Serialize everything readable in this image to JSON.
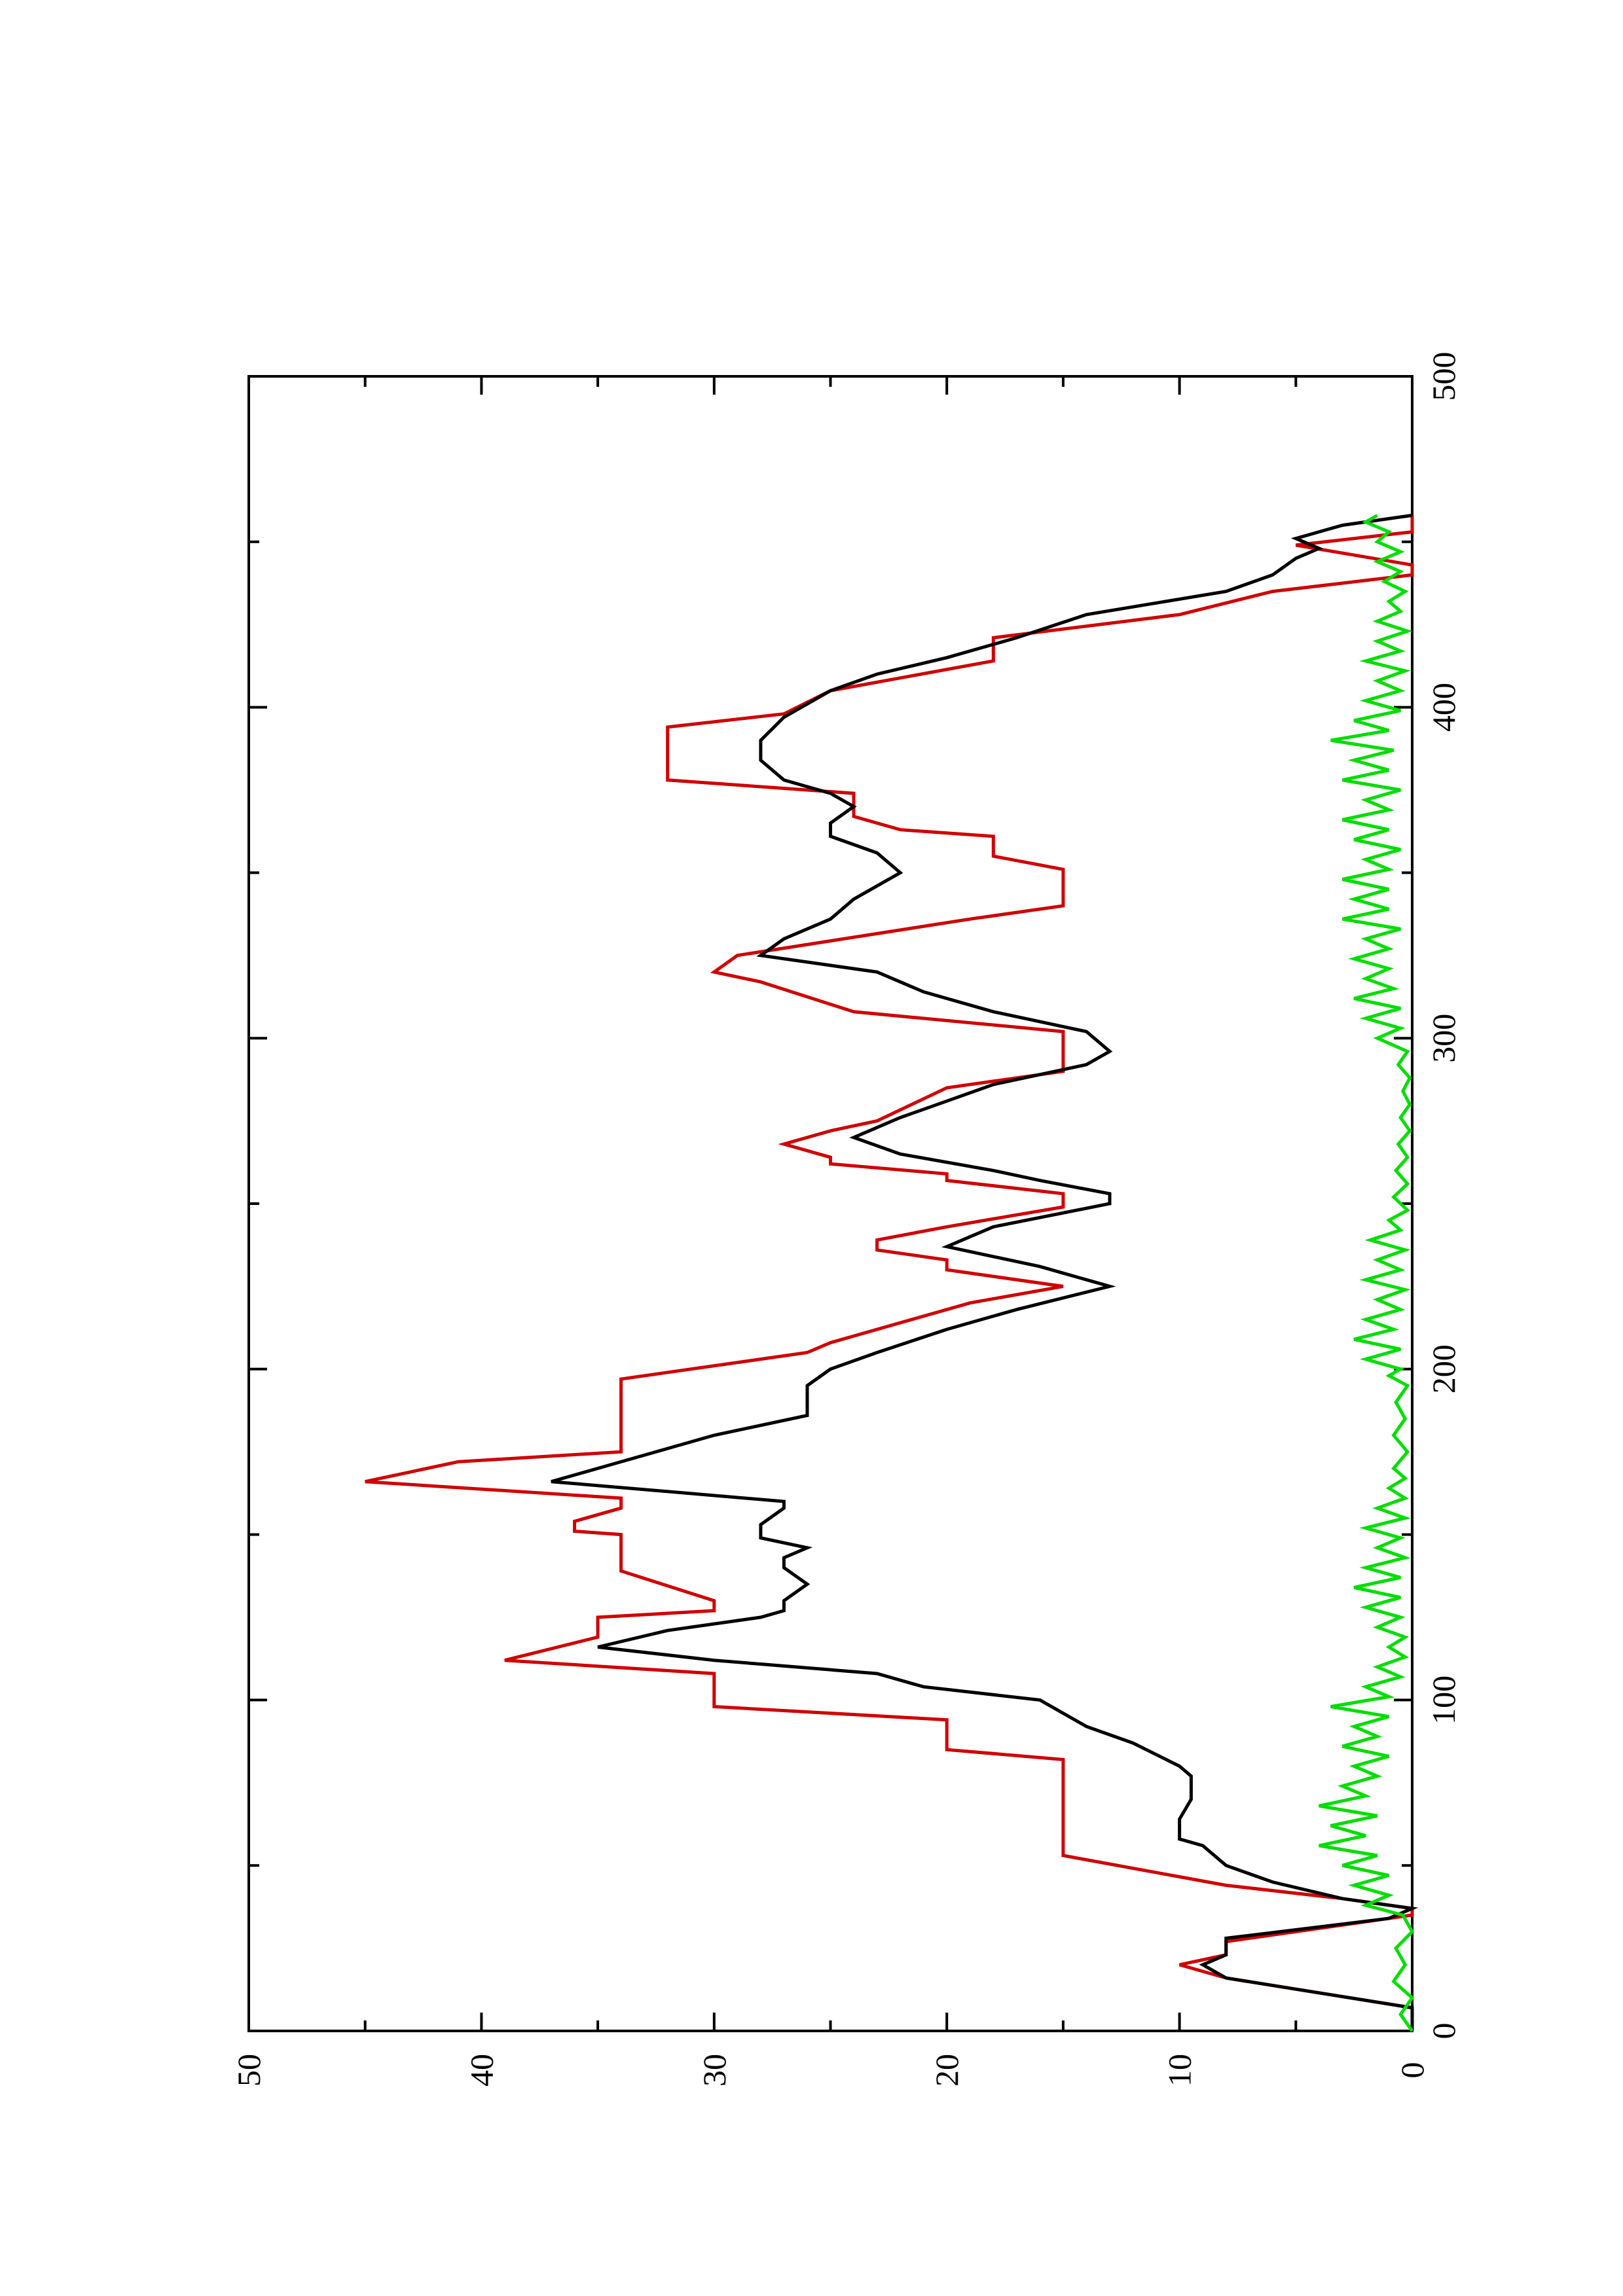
{
  "chart_data": {
    "type": "line",
    "orientation": "rotated-90-ccw",
    "title": "",
    "xlabel": "",
    "ylabel": "",
    "xlim": [
      0,
      500
    ],
    "ylim": [
      0,
      50
    ],
    "grid": false,
    "legend": "none",
    "x_ticks": [
      0,
      100,
      200,
      300,
      400,
      500
    ],
    "x_tick_labels": [
      "0",
      "100",
      "200",
      "300",
      "400",
      "500"
    ],
    "x_minor_ticks": [
      50,
      150,
      250,
      350,
      450
    ],
    "y_ticks": [
      0,
      10,
      20,
      30,
      40,
      50
    ],
    "y_tick_labels": [
      "0",
      "10",
      "20",
      "30",
      "40",
      "50"
    ],
    "y_minor_ticks": [
      5,
      15,
      25,
      35,
      45
    ],
    "series": [
      {
        "color": "#d00000",
        "points": [
          [
            0,
            0
          ],
          [
            7,
            0
          ],
          [
            16,
            8
          ],
          [
            20,
            10
          ],
          [
            23,
            8
          ],
          [
            27,
            8
          ],
          [
            35,
            0
          ],
          [
            37,
            0
          ],
          [
            40,
            3
          ],
          [
            44,
            8
          ],
          [
            53,
            15
          ],
          [
            56,
            15
          ],
          [
            82,
            15
          ],
          [
            85,
            20
          ],
          [
            94,
            20
          ],
          [
            98,
            30
          ],
          [
            108,
            30
          ],
          [
            112,
            39
          ],
          [
            119,
            35
          ],
          [
            125,
            35
          ],
          [
            127,
            30
          ],
          [
            130,
            30
          ],
          [
            139,
            34
          ],
          [
            150,
            34
          ],
          [
            151,
            36
          ],
          [
            154,
            36
          ],
          [
            158,
            34
          ],
          [
            161,
            34
          ],
          [
            166,
            45
          ],
          [
            172,
            41
          ],
          [
            175,
            34
          ],
          [
            197,
            34
          ],
          [
            205,
            26
          ],
          [
            208,
            25
          ],
          [
            218,
            20
          ],
          [
            220,
            19
          ],
          [
            225,
            15
          ],
          [
            230,
            20
          ],
          [
            233,
            20
          ],
          [
            236,
            23
          ],
          [
            239,
            23
          ],
          [
            243,
            20
          ],
          [
            249,
            15
          ],
          [
            253,
            15
          ],
          [
            257,
            20
          ],
          [
            259,
            20
          ],
          [
            262,
            25
          ],
          [
            264,
            25
          ],
          [
            268,
            27
          ],
          [
            272,
            25
          ],
          [
            275,
            23
          ],
          [
            285,
            20
          ],
          [
            290,
            15
          ],
          [
            302,
            15
          ],
          [
            308,
            24
          ],
          [
            317,
            28
          ],
          [
            320,
            30
          ],
          [
            325,
            29
          ],
          [
            336,
            19
          ],
          [
            340,
            15
          ],
          [
            351,
            15
          ],
          [
            355,
            18
          ],
          [
            361,
            18
          ],
          [
            363,
            22
          ],
          [
            367,
            24
          ],
          [
            374,
            24
          ],
          [
            378,
            32
          ],
          [
            394,
            32
          ],
          [
            398,
            27
          ],
          [
            405,
            25
          ],
          [
            414,
            18
          ],
          [
            421,
            18
          ],
          [
            428,
            10
          ],
          [
            435,
            6
          ],
          [
            440,
            0
          ],
          [
            443,
            0
          ],
          [
            449,
            5
          ],
          [
            453,
            0
          ],
          [
            458,
            0
          ]
        ]
      },
      {
        "color": "#000000",
        "points": [
          [
            0,
            0
          ],
          [
            7,
            0
          ],
          [
            16,
            8
          ],
          [
            20,
            9
          ],
          [
            23,
            8
          ],
          [
            28,
            8
          ],
          [
            34,
            1
          ],
          [
            37,
            0
          ],
          [
            40,
            3
          ],
          [
            45,
            6
          ],
          [
            50,
            8
          ],
          [
            56,
            9
          ],
          [
            58,
            10
          ],
          [
            64,
            10
          ],
          [
            70,
            9.5
          ],
          [
            77,
            9.5
          ],
          [
            80,
            10
          ],
          [
            87,
            12
          ],
          [
            92,
            14
          ],
          [
            100,
            16
          ],
          [
            104,
            21
          ],
          [
            108,
            23
          ],
          [
            112,
            30
          ],
          [
            116,
            35
          ],
          [
            121,
            32
          ],
          [
            125,
            28
          ],
          [
            127,
            27
          ],
          [
            130,
            27
          ],
          [
            135,
            26
          ],
          [
            140,
            27
          ],
          [
            143,
            27
          ],
          [
            146,
            26
          ],
          [
            149,
            28
          ],
          [
            153,
            28
          ],
          [
            158,
            27
          ],
          [
            160,
            27
          ],
          [
            166,
            37
          ],
          [
            170,
            35
          ],
          [
            172,
            34
          ],
          [
            180,
            30
          ],
          [
            186,
            26
          ],
          [
            195,
            26
          ],
          [
            200,
            25
          ],
          [
            205,
            23
          ],
          [
            212,
            20
          ],
          [
            218,
            17
          ],
          [
            225,
            13
          ],
          [
            229,
            15
          ],
          [
            231,
            16
          ],
          [
            234,
            18
          ],
          [
            237,
            20
          ],
          [
            240,
            19
          ],
          [
            243,
            18
          ],
          [
            250,
            13
          ],
          [
            253,
            13
          ],
          [
            257,
            16
          ],
          [
            260,
            18
          ],
          [
            265,
            22
          ],
          [
            270,
            24
          ],
          [
            276,
            22
          ],
          [
            281,
            20
          ],
          [
            286,
            18
          ],
          [
            292,
            14
          ],
          [
            296,
            13
          ],
          [
            302,
            14
          ],
          [
            308,
            18
          ],
          [
            314,
            21
          ],
          [
            320,
            23
          ],
          [
            325,
            28
          ],
          [
            330,
            27
          ],
          [
            336,
            25
          ],
          [
            342,
            24
          ],
          [
            350,
            22
          ],
          [
            356,
            23
          ],
          [
            361,
            25
          ],
          [
            365,
            25
          ],
          [
            370,
            24
          ],
          [
            374,
            25
          ],
          [
            378,
            27
          ],
          [
            384,
            28
          ],
          [
            390,
            28
          ],
          [
            397,
            27
          ],
          [
            405,
            25
          ],
          [
            410,
            23
          ],
          [
            415,
            20
          ],
          [
            421,
            17
          ],
          [
            428,
            14
          ],
          [
            435,
            8
          ],
          [
            440,
            6
          ],
          [
            445,
            5
          ],
          [
            448,
            4
          ],
          [
            451,
            5
          ],
          [
            455,
            3
          ],
          [
            458,
            0
          ]
        ]
      },
      {
        "color": "#00dd00",
        "points": [
          [
            0,
            0
          ],
          [
            5,
            0.5
          ],
          [
            10,
            0
          ],
          [
            15,
            0.8
          ],
          [
            20,
            0.3
          ],
          [
            25,
            0.7
          ],
          [
            30,
            0
          ],
          [
            35,
            0.4
          ],
          [
            38,
            2
          ],
          [
            41,
            1
          ],
          [
            44,
            2.5
          ],
          [
            47,
            1
          ],
          [
            50,
            3
          ],
          [
            53,
            1.5
          ],
          [
            56,
            4
          ],
          [
            59,
            2
          ],
          [
            62,
            3.5
          ],
          [
            65,
            1.5
          ],
          [
            68,
            4
          ],
          [
            71,
            2
          ],
          [
            74,
            3
          ],
          [
            77,
            1.5
          ],
          [
            80,
            2.5
          ],
          [
            83,
            1
          ],
          [
            86,
            3
          ],
          [
            89,
            1.5
          ],
          [
            92,
            2.5
          ],
          [
            95,
            1
          ],
          [
            98,
            3.5
          ],
          [
            101,
            1
          ],
          [
            104,
            2
          ],
          [
            107,
            0.5
          ],
          [
            110,
            1.5
          ],
          [
            113,
            0.3
          ],
          [
            116,
            1
          ],
          [
            119,
            0.3
          ],
          [
            122,
            1.5
          ],
          [
            125,
            0.5
          ],
          [
            128,
            2
          ],
          [
            131,
            0.5
          ],
          [
            134,
            2.5
          ],
          [
            137,
            0.5
          ],
          [
            140,
            2
          ],
          [
            143,
            0.3
          ],
          [
            146,
            1.5
          ],
          [
            149,
            0.5
          ],
          [
            152,
            2
          ],
          [
            155,
            0.3
          ],
          [
            158,
            1.5
          ],
          [
            161,
            0.3
          ],
          [
            164,
            1
          ],
          [
            167,
            0.3
          ],
          [
            170,
            0.8
          ],
          [
            175,
            0.2
          ],
          [
            180,
            0.8
          ],
          [
            185,
            0.3
          ],
          [
            190,
            0.7
          ],
          [
            195,
            0.2
          ],
          [
            198,
            1
          ],
          [
            200,
            0.5
          ],
          [
            203,
            2
          ],
          [
            206,
            0.5
          ],
          [
            209,
            2.5
          ],
          [
            212,
            0.8
          ],
          [
            215,
            2
          ],
          [
            218,
            0.5
          ],
          [
            221,
            1.5
          ],
          [
            224,
            0.3
          ],
          [
            227,
            2
          ],
          [
            230,
            0.5
          ],
          [
            233,
            1.5
          ],
          [
            236,
            0.3
          ],
          [
            239,
            1.8
          ],
          [
            242,
            0.5
          ],
          [
            245,
            1
          ],
          [
            248,
            0.2
          ],
          [
            252,
            0.8
          ],
          [
            256,
            0.2
          ],
          [
            260,
            0.7
          ],
          [
            264,
            0.2
          ],
          [
            268,
            0.6
          ],
          [
            272,
            0.1
          ],
          [
            276,
            0.5
          ],
          [
            280,
            0.1
          ],
          [
            284,
            0.4
          ],
          [
            288,
            0.1
          ],
          [
            292,
            0.6
          ],
          [
            296,
            0.2
          ],
          [
            300,
            1.5
          ],
          [
            303,
            0.5
          ],
          [
            306,
            2
          ],
          [
            309,
            0.5
          ],
          [
            312,
            2.5
          ],
          [
            315,
            0.8
          ],
          [
            318,
            2
          ],
          [
            321,
            1
          ],
          [
            324,
            2.5
          ],
          [
            327,
            1
          ],
          [
            330,
            2
          ],
          [
            333,
            0.5
          ],
          [
            336,
            3
          ],
          [
            339,
            1
          ],
          [
            342,
            2.5
          ],
          [
            345,
            1
          ],
          [
            348,
            3
          ],
          [
            351,
            1
          ],
          [
            354,
            2
          ],
          [
            357,
            0.5
          ],
          [
            360,
            2.5
          ],
          [
            363,
            1
          ],
          [
            366,
            3
          ],
          [
            369,
            1
          ],
          [
            372,
            2
          ],
          [
            375,
            0.5
          ],
          [
            378,
            3
          ],
          [
            381,
            1
          ],
          [
            384,
            2.5
          ],
          [
            387,
            0.8
          ],
          [
            390,
            3.5
          ],
          [
            393,
            1
          ],
          [
            396,
            2.5
          ],
          [
            399,
            0.5
          ],
          [
            402,
            2
          ],
          [
            405,
            0.5
          ],
          [
            408,
            1.5
          ],
          [
            411,
            0.3
          ],
          [
            414,
            2
          ],
          [
            417,
            0.5
          ],
          [
            420,
            1.5
          ],
          [
            423,
            0.2
          ],
          [
            426,
            1.5
          ],
          [
            429,
            0.5
          ],
          [
            432,
            1
          ],
          [
            435,
            0.3
          ],
          [
            438,
            1.2
          ],
          [
            441,
            0.5
          ],
          [
            444,
            1.5
          ],
          [
            447,
            0.5
          ],
          [
            450,
            1.5
          ],
          [
            453,
            1
          ],
          [
            456,
            2
          ],
          [
            458,
            1.5
          ]
        ]
      }
    ]
  }
}
